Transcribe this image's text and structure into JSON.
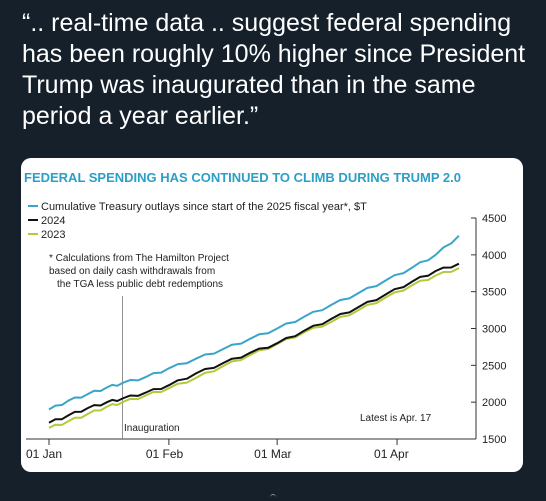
{
  "tweet": {
    "quote_text": "“.. real-time data .. suggest federal spending has been roughly 10% higher since President Trump was inaugurated than in the same period a year earlier.”"
  },
  "colors": {
    "background": "#15202b",
    "title": "#2a9fc8",
    "series_2025": "#3aa5c9",
    "series_2024": "#111111",
    "series_2023": "#b7c83a",
    "axis": "#333333"
  },
  "chart_data": {
    "type": "line",
    "title": "FEDERAL SPENDING HAS CONTINUED TO CLIMB DURING TRUMP 2.0",
    "legend": {
      "placement": "top-left",
      "entries": [
        "Cumulative Treasury outlays since start of the 2025 fiscal year*, $T",
        "2024",
        "2023"
      ]
    },
    "footnote": "* Calculations from The Hamilton Project based on daily cash withdrawals from the TGA less public debt redemptions",
    "annotations": {
      "inauguration": "Inauguration",
      "latest": "Latest is Apr. 17"
    },
    "inauguration_day": 19,
    "x_ticks": [
      {
        "label": "01 Jan",
        "day": 0
      },
      {
        "label": "01 Feb",
        "day": 31
      },
      {
        "label": "01 Mar",
        "day": 59
      },
      {
        "label": "01 Apr",
        "day": 90
      }
    ],
    "xlim": [
      0,
      106
    ],
    "ylim": [
      1500,
      4500
    ],
    "y_ticks": [
      1500,
      2000,
      2500,
      3000,
      3500,
      4000,
      4500
    ],
    "y_axis_side": "right",
    "grid": false,
    "series": [
      {
        "name": "Cumulative Treasury outlays since start of the 2025 fiscal year*, $T",
        "color_key": "series_2025",
        "points": [
          [
            0,
            1900
          ],
          [
            5,
            2020
          ],
          [
            10,
            2110
          ],
          [
            15,
            2200
          ],
          [
            19,
            2260
          ],
          [
            25,
            2340
          ],
          [
            31,
            2460
          ],
          [
            38,
            2590
          ],
          [
            45,
            2720
          ],
          [
            52,
            2860
          ],
          [
            59,
            3000
          ],
          [
            66,
            3160
          ],
          [
            73,
            3320
          ],
          [
            80,
            3480
          ],
          [
            87,
            3650
          ],
          [
            94,
            3830
          ],
          [
            100,
            4000
          ],
          [
            106,
            4260
          ]
        ]
      },
      {
        "name": "2024",
        "color_key": "series_2024",
        "points": [
          [
            0,
            1720
          ],
          [
            5,
            1820
          ],
          [
            10,
            1920
          ],
          [
            15,
            2000
          ],
          [
            19,
            2050
          ],
          [
            25,
            2130
          ],
          [
            31,
            2230
          ],
          [
            38,
            2390
          ],
          [
            45,
            2530
          ],
          [
            52,
            2670
          ],
          [
            59,
            2800
          ],
          [
            66,
            2970
          ],
          [
            73,
            3130
          ],
          [
            80,
            3290
          ],
          [
            87,
            3460
          ],
          [
            94,
            3640
          ],
          [
            100,
            3780
          ],
          [
            106,
            3880
          ]
        ]
      },
      {
        "name": "2023",
        "color_key": "series_2023",
        "points": [
          [
            0,
            1650
          ],
          [
            5,
            1740
          ],
          [
            10,
            1840
          ],
          [
            15,
            1940
          ],
          [
            19,
            2000
          ],
          [
            25,
            2090
          ],
          [
            31,
            2190
          ],
          [
            38,
            2330
          ],
          [
            45,
            2490
          ],
          [
            52,
            2640
          ],
          [
            59,
            2790
          ],
          [
            66,
            2950
          ],
          [
            73,
            3090
          ],
          [
            80,
            3250
          ],
          [
            87,
            3420
          ],
          [
            94,
            3590
          ],
          [
            100,
            3720
          ],
          [
            106,
            3820
          ]
        ]
      }
    ]
  }
}
